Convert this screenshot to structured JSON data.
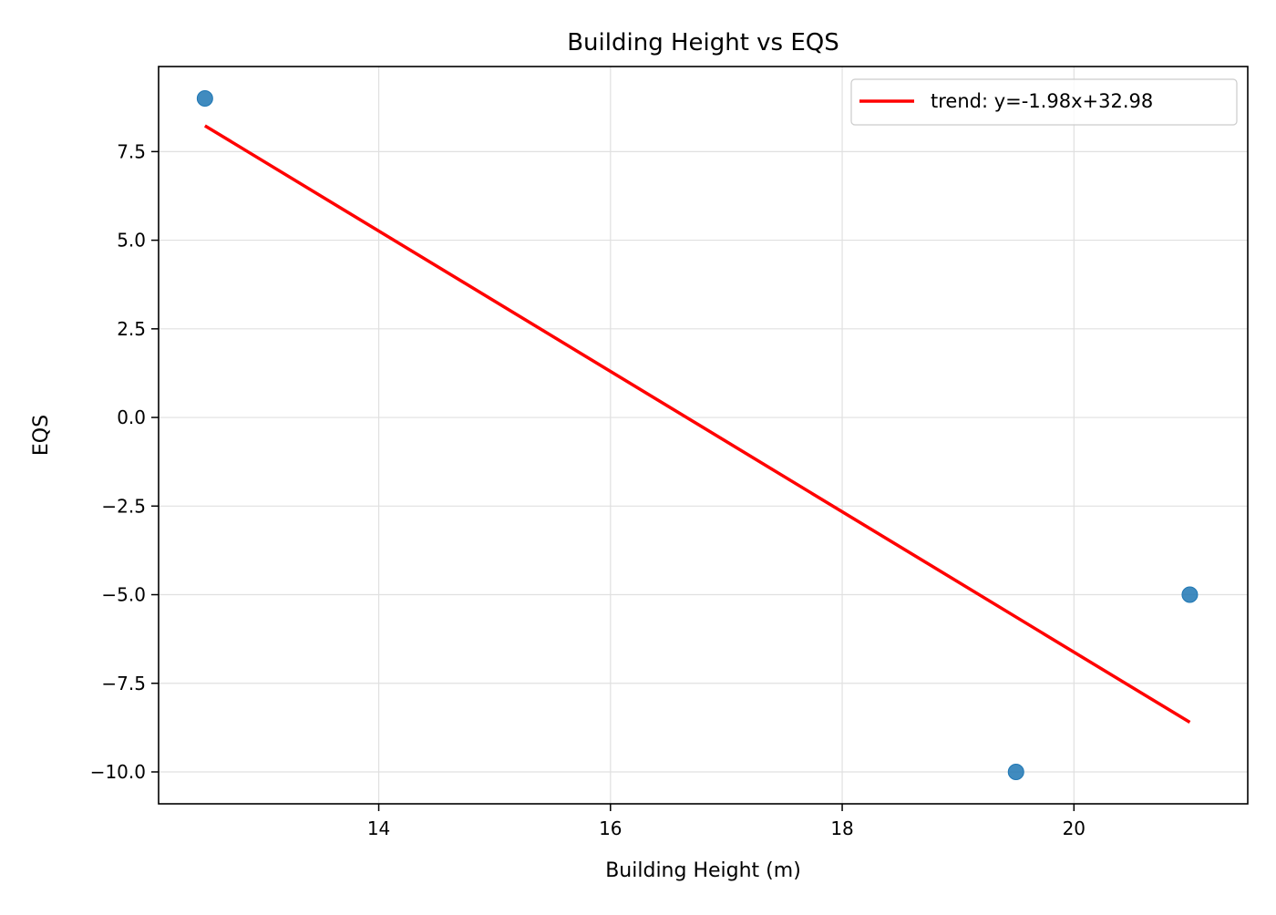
{
  "chart_data": {
    "type": "scatter",
    "title": "Building Height vs EQS",
    "xlabel": "Building Height (m)",
    "ylabel": "EQS",
    "xlim": [
      12.1,
      21.5
    ],
    "ylim": [
      -10.9,
      9.9
    ],
    "x_ticks": [
      {
        "value": 14,
        "label": "14"
      },
      {
        "value": 16,
        "label": "16"
      },
      {
        "value": 18,
        "label": "18"
      },
      {
        "value": 20,
        "label": "20"
      }
    ],
    "y_ticks": [
      {
        "value": 7.5,
        "label": "7.5"
      },
      {
        "value": 5.0,
        "label": "5.0"
      },
      {
        "value": 2.5,
        "label": "2.5"
      },
      {
        "value": 0.0,
        "label": "0.0"
      },
      {
        "value": -2.5,
        "label": "−2.5"
      },
      {
        "value": -5.0,
        "label": "−5.0"
      },
      {
        "value": -7.5,
        "label": "−7.5"
      },
      {
        "value": -10.0,
        "label": "−10.0"
      }
    ],
    "grid": true,
    "legend_position": "top-right",
    "series": [
      {
        "kind": "scatter",
        "color": "#1f77b4",
        "points": [
          {
            "x": 12.5,
            "y": 9.0
          },
          {
            "x": 19.5,
            "y": -10.0
          },
          {
            "x": 21.0,
            "y": -5.0
          }
        ]
      },
      {
        "kind": "line",
        "name": "trend: y=-1.98x+32.98",
        "color": "#ff0000",
        "points": [
          {
            "x": 12.5,
            "y": 8.23
          },
          {
            "x": 21.0,
            "y": -8.6
          }
        ]
      }
    ]
  }
}
